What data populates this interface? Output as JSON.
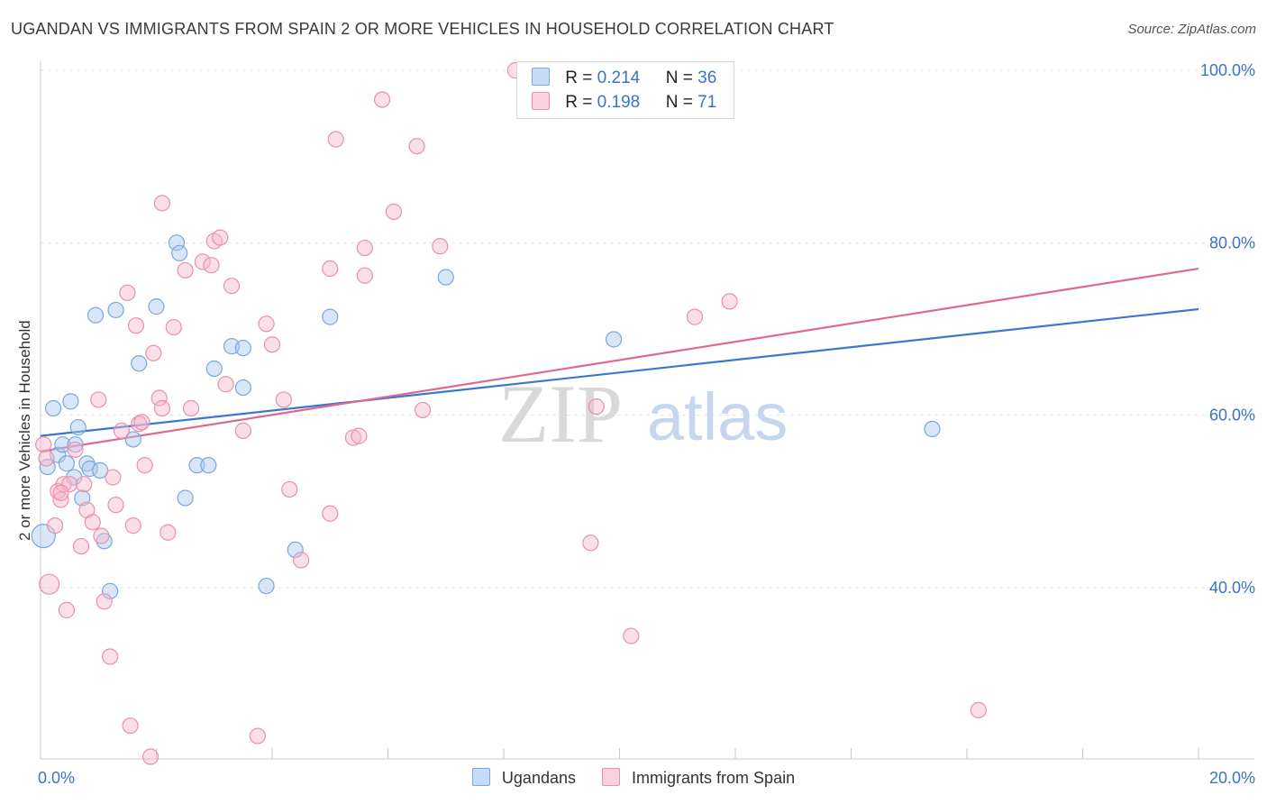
{
  "header": {
    "title": "UGANDAN VS IMMIGRANTS FROM SPAIN 2 OR MORE VEHICLES IN HOUSEHOLD CORRELATION CHART",
    "source": "Source: ZipAtlas.com"
  },
  "watermark": {
    "zip": "ZIP",
    "atlas": "atlas"
  },
  "legend_top": [
    {
      "r_label": "R =",
      "r_value": "0.214",
      "n_label": "N =",
      "n_value": "36",
      "color": "#a8c8f0"
    },
    {
      "r_label": "R =",
      "r_value": "0.198",
      "n_label": "N =",
      "n_value": "71",
      "color": "#f6b8cc"
    }
  ],
  "legend_bottom": [
    {
      "label": "Ugandans",
      "color": "#a8c8f0"
    },
    {
      "label": "Immigrants from Spain",
      "color": "#f6b8cc"
    }
  ],
  "colors": {
    "blue_fill": "#a8c8f0",
    "blue_stroke": "#7aa8dc",
    "blue_line": "#3a78d0",
    "pink_fill": "#f6b8cc",
    "pink_stroke": "#e891ac",
    "pink_line": "#e06890",
    "tick_text": "#3b74c4"
  },
  "chart_data": {
    "type": "scatter",
    "title": "UGANDAN VS IMMIGRANTS FROM SPAIN 2 OR MORE VEHICLES IN HOUSEHOLD CORRELATION CHART",
    "xlabel": "",
    "ylabel": "2 or more Vehicles in Household",
    "xlim": [
      0,
      20
    ],
    "ylim": [
      20,
      102
    ],
    "x_tick_labels": [
      "0.0%",
      "20.0%"
    ],
    "y_ticks": [
      40,
      60,
      80,
      100
    ],
    "y_tick_labels": [
      "40.0%",
      "60.0%",
      "80.0%",
      "100.0%"
    ],
    "grid": true,
    "legend_position": "top-center",
    "series": [
      {
        "name": "Ugandans",
        "R": 0.214,
        "N": 36,
        "trend": [
          [
            0,
            57.6
          ],
          [
            20,
            72.3
          ]
        ],
        "points": [
          [
            0.05,
            46.0
          ],
          [
            0.12,
            54.0
          ],
          [
            0.22,
            60.8
          ],
          [
            0.3,
            55.4
          ],
          [
            0.38,
            56.6
          ],
          [
            0.45,
            54.4
          ],
          [
            0.52,
            61.6
          ],
          [
            0.58,
            52.8
          ],
          [
            0.65,
            58.6
          ],
          [
            0.72,
            50.4
          ],
          [
            0.8,
            54.4
          ],
          [
            0.85,
            53.8
          ],
          [
            0.95,
            71.6
          ],
          [
            1.03,
            53.6
          ],
          [
            1.1,
            45.4
          ],
          [
            1.2,
            39.6
          ],
          [
            1.3,
            72.2
          ],
          [
            1.6,
            57.2
          ],
          [
            1.7,
            66.0
          ],
          [
            2.0,
            72.6
          ],
          [
            2.35,
            80.0
          ],
          [
            2.4,
            78.8
          ],
          [
            2.5,
            50.4
          ],
          [
            2.7,
            54.2
          ],
          [
            2.9,
            54.2
          ],
          [
            3.0,
            65.4
          ],
          [
            3.3,
            68.0
          ],
          [
            3.5,
            67.8
          ],
          [
            3.5,
            63.2
          ],
          [
            3.9,
            40.2
          ],
          [
            4.4,
            44.4
          ],
          [
            5.0,
            71.4
          ],
          [
            7.0,
            76.0
          ],
          [
            9.9,
            68.8
          ],
          [
            15.4,
            58.4
          ],
          [
            0.6,
            56.6
          ]
        ]
      },
      {
        "name": "Immigrants from Spain",
        "R": 0.198,
        "N": 71,
        "trend": [
          [
            0,
            55.8
          ],
          [
            20,
            77.0
          ]
        ],
        "points": [
          [
            0.05,
            56.6
          ],
          [
            0.1,
            55.0
          ],
          [
            0.15,
            40.4
          ],
          [
            0.25,
            47.2
          ],
          [
            0.3,
            51.2
          ],
          [
            0.35,
            50.2
          ],
          [
            0.4,
            52.0
          ],
          [
            0.45,
            37.4
          ],
          [
            0.6,
            56.0
          ],
          [
            0.7,
            44.8
          ],
          [
            0.8,
            49.0
          ],
          [
            0.9,
            47.6
          ],
          [
            1.0,
            61.8
          ],
          [
            1.05,
            46.0
          ],
          [
            1.1,
            38.4
          ],
          [
            1.2,
            32.0
          ],
          [
            1.25,
            52.8
          ],
          [
            1.3,
            49.6
          ],
          [
            1.5,
            74.2
          ],
          [
            1.55,
            24.0
          ],
          [
            1.6,
            47.2
          ],
          [
            1.65,
            70.4
          ],
          [
            1.7,
            59.0
          ],
          [
            1.75,
            59.2
          ],
          [
            1.8,
            54.2
          ],
          [
            1.9,
            20.4
          ],
          [
            1.95,
            67.2
          ],
          [
            2.05,
            62.0
          ],
          [
            2.1,
            60.8
          ],
          [
            2.1,
            84.6
          ],
          [
            2.2,
            46.4
          ],
          [
            2.3,
            70.2
          ],
          [
            2.5,
            76.8
          ],
          [
            2.6,
            60.8
          ],
          [
            2.8,
            77.8
          ],
          [
            2.95,
            77.4
          ],
          [
            3.0,
            80.2
          ],
          [
            3.1,
            80.6
          ],
          [
            3.2,
            63.6
          ],
          [
            3.3,
            75.0
          ],
          [
            3.5,
            58.2
          ],
          [
            3.75,
            22.8
          ],
          [
            3.9,
            70.6
          ],
          [
            4.0,
            68.2
          ],
          [
            4.2,
            61.8
          ],
          [
            4.3,
            51.4
          ],
          [
            4.5,
            43.2
          ],
          [
            5.0,
            77.0
          ],
          [
            5.0,
            48.6
          ],
          [
            5.1,
            92.0
          ],
          [
            5.4,
            57.4
          ],
          [
            5.5,
            57.6
          ],
          [
            5.6,
            76.2
          ],
          [
            5.6,
            79.4
          ],
          [
            5.9,
            96.6
          ],
          [
            6.1,
            83.6
          ],
          [
            6.5,
            91.2
          ],
          [
            6.6,
            60.6
          ],
          [
            6.9,
            79.6
          ],
          [
            8.2,
            100.0
          ],
          [
            8.5,
            99.6
          ],
          [
            9.5,
            45.2
          ],
          [
            9.6,
            61.0
          ],
          [
            10.2,
            34.4
          ],
          [
            11.3,
            71.4
          ],
          [
            11.9,
            73.2
          ],
          [
            16.2,
            25.8
          ],
          [
            0.5,
            52.0
          ],
          [
            0.75,
            52.0
          ],
          [
            1.4,
            58.2
          ],
          [
            0.35,
            51.0
          ]
        ]
      }
    ]
  }
}
